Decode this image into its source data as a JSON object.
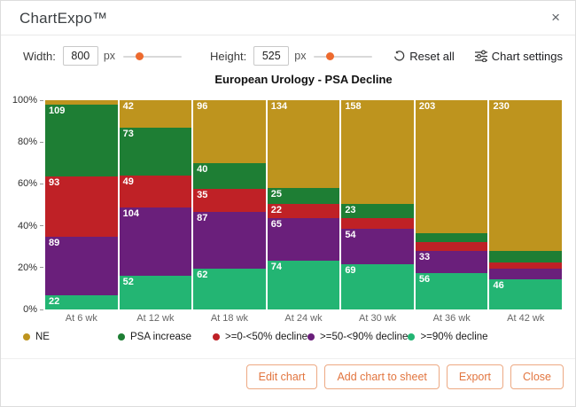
{
  "header": {
    "brand": "ChartExpo™",
    "close_glyph": "×"
  },
  "controls": {
    "width_label": "Width:",
    "width_value": "800",
    "width_unit": "px",
    "width_slider_percent": 27,
    "height_label": "Height:",
    "height_value": "525",
    "height_unit": "px",
    "height_slider_percent": 27,
    "reset_label": "Reset all",
    "settings_label": "Chart settings"
  },
  "chart_data": {
    "type": "mosaic-100pct-stacked-bar",
    "title": "European Urology - PSA Decline",
    "categories": [
      "At 6 wk",
      "At 12 wk",
      "At 18 wk",
      "At 24 wk",
      "At 30 wk",
      "At 36 wk",
      "At 42 wk"
    ],
    "column_total": 320,
    "y_ticks": [
      "100%",
      "80%",
      "60%",
      "40%",
      "20%",
      "0%"
    ],
    "ylim": [
      0,
      100
    ],
    "grid": false,
    "legend_position": "bottom",
    "series": [
      {
        "name": "NE",
        "color": "#BE941E",
        "values": [
          7,
          42,
          96,
          134,
          158,
          203,
          230
        ],
        "labels_visible": [
          false,
          true,
          true,
          true,
          true,
          true,
          true
        ]
      },
      {
        "name": "PSA increase",
        "color": "#1E7E34",
        "values": [
          109,
          73,
          40,
          25,
          23,
          14,
          18
        ],
        "labels_visible": [
          true,
          true,
          true,
          true,
          true,
          false,
          false
        ]
      },
      {
        "name": ">=0-<50% decline",
        "color": "#BF2126",
        "values": [
          93,
          49,
          35,
          22,
          16,
          14,
          10
        ],
        "labels_visible": [
          true,
          true,
          true,
          true,
          false,
          false,
          false
        ]
      },
      {
        "name": ">=50-<90% decline",
        "color": "#6A1F7B",
        "values": [
          89,
          104,
          87,
          65,
          54,
          33,
          16
        ],
        "labels_visible": [
          true,
          true,
          true,
          true,
          true,
          true,
          false
        ]
      },
      {
        "name": ">=90% decline",
        "color": "#23B573",
        "values": [
          22,
          52,
          62,
          74,
          69,
          56,
          46
        ],
        "labels_visible": [
          true,
          true,
          true,
          true,
          true,
          true,
          true
        ]
      }
    ]
  },
  "footer": {
    "buttons": [
      {
        "label": "Edit chart"
      },
      {
        "label": "Add chart to sheet"
      },
      {
        "label": "Export"
      },
      {
        "label": "Close"
      }
    ]
  }
}
